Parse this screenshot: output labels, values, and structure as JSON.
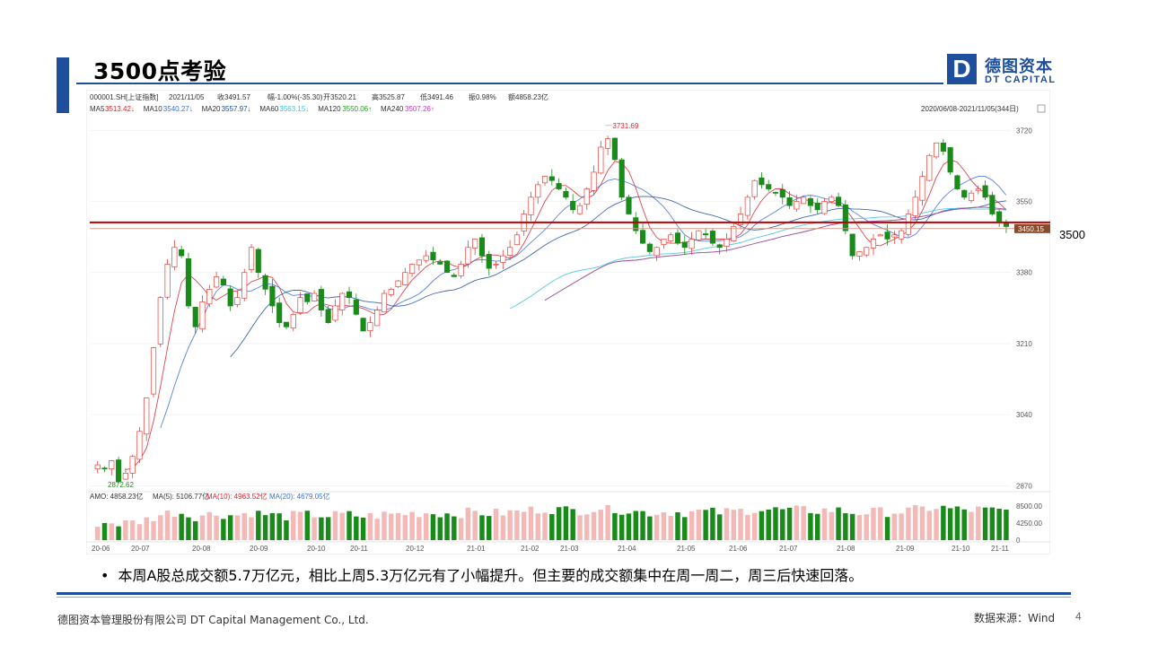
{
  "slide": {
    "title": "3500点考验",
    "logo": {
      "mark": "D",
      "cn": "德图资本",
      "en": "DT CAPITAL"
    },
    "level_label": "3500",
    "bullet": "本周A股总成交额5.7万亿元，相比上周5.3万亿元有了小幅提升。但主要的成交额集中在周一周二，周三后快速回落。",
    "footer_left": "德图资本管理股份有限公司 DT Capital Management Co., Ltd.",
    "footer_right": "数据来源：Wind",
    "page_number": "4"
  },
  "colors": {
    "brand": "#1f4e9c",
    "up": "#e8403a",
    "down": "#1a8a1a",
    "level_line": "#c00000"
  },
  "chart_data": {
    "type": "candlestick",
    "header": {
      "code": "000001.SH[上证指数]",
      "date": "2021/11/05",
      "close": "收3491.57",
      "change": "幅-1.00%(-35.30)",
      "open": "开3520.21",
      "high": "高3525.87",
      "low": "低3491.46",
      "amplitude": "振0.98%",
      "amount": "额4858.23亿"
    },
    "ma": [
      {
        "name": "MA5",
        "value": "3513.42↓",
        "color": "#d9252f"
      },
      {
        "name": "MA10",
        "value": "3540.27↓",
        "color": "#3b6fd9"
      },
      {
        "name": "MA20",
        "value": "3557.97↓",
        "color": "#1f4ea0"
      },
      {
        "name": "MA60",
        "value": "3563.15↓",
        "color": "#3cc0e0"
      },
      {
        "name": "MA120",
        "value": "3550.06↑",
        "color": "#2a9a2a"
      },
      {
        "name": "MA240",
        "value": "3507.26↑",
        "color": "#c040c0"
      }
    ],
    "range_label": "2020/06/08-2021/11/05(344日)",
    "y_ticks": [
      3720,
      3550,
      3380,
      3210,
      3040,
      2870
    ],
    "ylim": [
      2860,
      3740
    ],
    "x_labels": [
      "20-06",
      "20-07",
      "20-08",
      "20-09",
      "20-10",
      "20-11",
      "20-12",
      "21-01",
      "21-02",
      "21-03",
      "21-04",
      "21-05",
      "21-06",
      "21-07",
      "21-08",
      "21-09",
      "21-10",
      "21-11"
    ],
    "annotations": {
      "high": "3731.69",
      "low": "2872.62",
      "price_tag": "3450.15"
    },
    "level_line_value": 3500,
    "ref_line_value": 3485,
    "price_series": [
      2920,
      2910,
      2930,
      2880,
      2900,
      2940,
      3000,
      3080,
      3200,
      3320,
      3400,
      3440,
      3420,
      3300,
      3250,
      3310,
      3340,
      3370,
      3350,
      3300,
      3320,
      3380,
      3440,
      3380,
      3340,
      3300,
      3260,
      3250,
      3280,
      3320,
      3310,
      3330,
      3290,
      3260,
      3300,
      3330,
      3320,
      3280,
      3240,
      3260,
      3290,
      3330,
      3340,
      3360,
      3380,
      3400,
      3410,
      3420,
      3410,
      3400,
      3380,
      3370,
      3400,
      3440,
      3460,
      3420,
      3390,
      3400,
      3420,
      3440,
      3470,
      3520,
      3560,
      3590,
      3610,
      3600,
      3580,
      3560,
      3530,
      3540,
      3580,
      3620,
      3680,
      3700,
      3650,
      3560,
      3520,
      3480,
      3450,
      3430,
      3440,
      3460,
      3470,
      3450,
      3440,
      3460,
      3480,
      3470,
      3450,
      3440,
      3460,
      3490,
      3520,
      3560,
      3600,
      3590,
      3580,
      3570,
      3560,
      3540,
      3550,
      3560,
      3540,
      3530,
      3550,
      3560,
      3540,
      3480,
      3420,
      3430,
      3440,
      3460,
      3470,
      3460,
      3470,
      3480,
      3520,
      3560,
      3610,
      3660,
      3690,
      3670,
      3620,
      3580,
      3560,
      3570,
      3580,
      3560,
      3520,
      3500,
      3490
    ],
    "volume": {
      "label": "AMO: 4858.23亿",
      "ma5": "MA(5): 5106.77亿",
      "ma10": "MA(10): 4963.52亿",
      "ma20": "MA(20): 4679.05亿",
      "ticks": [
        "8500.00",
        "4250.00",
        "0"
      ]
    }
  }
}
